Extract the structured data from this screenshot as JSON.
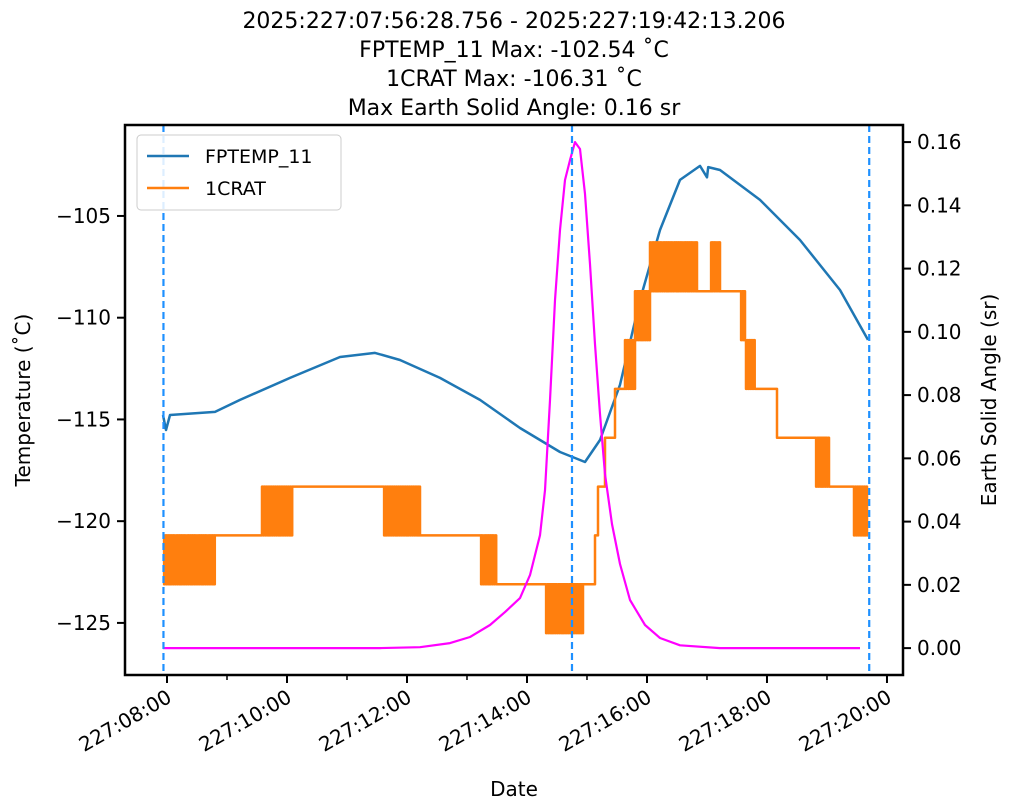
{
  "chart_data": {
    "type": "line",
    "title_lines": [
      "2025:227:07:56:28.756 - 2025:227:19:42:13.206",
      "FPTEMP_11 Max: -102.54 ˚C",
      "1CRAT Max: -106.31 ˚C",
      "Max Earth Solid Angle: 0.16 sr"
    ],
    "xlabel": "Date",
    "ylabel_left": "Temperature ($^\\circ$C)",
    "ylabel_left_display": "Temperature (˚C)",
    "ylabel_right": "Earth Solid Angle (sr)",
    "x_units": "hours of day 227",
    "xlim": [
      7.3,
      20.267
    ],
    "ylim_left": [
      -127.56,
      -100.53
    ],
    "ylim_right": [
      -0.0085,
      0.1654
    ],
    "x_ticks": [
      {
        "value": 8,
        "label": "227:08:00"
      },
      {
        "value": 10,
        "label": "227:10:00"
      },
      {
        "value": 12,
        "label": "227:12:00"
      },
      {
        "value": 14,
        "label": "227:14:00"
      },
      {
        "value": 16,
        "label": "227:16:00"
      },
      {
        "value": 18,
        "label": "227:18:00"
      },
      {
        "value": 20,
        "label": "227:20:00"
      }
    ],
    "x_minor_ticks": [
      9,
      11,
      13,
      15,
      17,
      19
    ],
    "y_ticks_left": [
      {
        "value": -105,
        "label": "−105"
      },
      {
        "value": -110,
        "label": "−110"
      },
      {
        "value": -115,
        "label": "−115"
      },
      {
        "value": -120,
        "label": "−120"
      },
      {
        "value": -125,
        "label": "−125"
      }
    ],
    "y_ticks_right": [
      {
        "value": 0.0,
        "label": "0.00"
      },
      {
        "value": 0.02,
        "label": "0.02"
      },
      {
        "value": 0.04,
        "label": "0.04"
      },
      {
        "value": 0.06,
        "label": "0.06"
      },
      {
        "value": 0.08,
        "label": "0.08"
      },
      {
        "value": 0.1,
        "label": "0.10"
      },
      {
        "value": 0.12,
        "label": "0.12"
      },
      {
        "value": 0.14,
        "label": "0.14"
      },
      {
        "value": 0.16,
        "label": "0.16"
      }
    ],
    "legend": {
      "placement": "upper-left",
      "entries": [
        {
          "name": "FPTEMP_11",
          "color": "#1f77b4"
        },
        {
          "name": "1CRAT",
          "color": "#ff7f0e"
        }
      ]
    },
    "vlines": {
      "color": "#1e90ff",
      "x": [
        7.941,
        14.75,
        19.704
      ]
    },
    "series": [
      {
        "name": "FPTEMP_11",
        "axis": "left",
        "color": "#1f77b4",
        "points": [
          [
            7.933,
            -114.78
          ],
          [
            7.983,
            -115.52
          ],
          [
            8.05,
            -114.78
          ],
          [
            8.8,
            -114.63
          ],
          [
            9.217,
            -114.04
          ],
          [
            10.05,
            -112.96
          ],
          [
            10.883,
            -111.93
          ],
          [
            11.467,
            -111.73
          ],
          [
            11.883,
            -112.08
          ],
          [
            12.55,
            -112.96
          ],
          [
            13.217,
            -114.04
          ],
          [
            13.883,
            -115.42
          ],
          [
            14.55,
            -116.6
          ],
          [
            14.967,
            -117.09
          ],
          [
            15.217,
            -116.01
          ],
          [
            15.55,
            -113.3
          ],
          [
            15.883,
            -109.13
          ],
          [
            16.217,
            -105.69
          ],
          [
            16.55,
            -103.23
          ],
          [
            16.883,
            -102.54
          ],
          [
            17.0,
            -103.1
          ],
          [
            17.02,
            -102.6
          ],
          [
            17.217,
            -102.74
          ],
          [
            17.883,
            -104.21
          ],
          [
            18.55,
            -106.18
          ],
          [
            19.217,
            -108.64
          ],
          [
            19.683,
            -111.09
          ]
        ]
      },
      {
        "name": "1CRAT",
        "axis": "left",
        "color": "#ff7f0e",
        "segments": [
          [
            7.933,
            8.8,
            -120.7,
            -123.1
          ],
          [
            8.8,
            9.583,
            -120.7,
            null
          ],
          [
            9.583,
            10.1,
            -118.3,
            -120.7
          ],
          [
            10.1,
            11.6,
            -118.3,
            null
          ],
          [
            11.6,
            12.217,
            -118.3,
            -120.7
          ],
          [
            12.217,
            13.217,
            -120.7,
            null
          ],
          [
            13.217,
            13.5,
            -120.7,
            -123.1
          ],
          [
            13.5,
            14.3,
            -123.1,
            null
          ],
          [
            14.3,
            14.933,
            -123.1,
            -125.5
          ],
          [
            14.933,
            15.133,
            -123.1,
            null
          ],
          [
            15.133,
            15.183,
            -120.7,
            null
          ],
          [
            15.183,
            15.3,
            -118.3,
            null
          ],
          [
            15.3,
            15.467,
            -115.9,
            null
          ],
          [
            15.467,
            15.633,
            -113.5,
            null
          ],
          [
            15.633,
            15.8,
            -111.1,
            -113.5
          ],
          [
            15.8,
            16.05,
            -108.7,
            -111.1
          ],
          [
            16.05,
            16.467,
            -106.3,
            -108.7
          ],
          [
            16.467,
            16.833,
            -106.3,
            -108.7
          ],
          [
            16.833,
            17.05,
            -108.7,
            null
          ],
          [
            17.05,
            17.217,
            -108.7,
            -106.3
          ],
          [
            17.217,
            17.55,
            -108.7,
            null
          ],
          [
            17.55,
            17.633,
            -108.7,
            -111.1
          ],
          [
            17.633,
            17.8,
            -111.1,
            -113.5
          ],
          [
            17.8,
            18.167,
            -113.5,
            null
          ],
          [
            18.167,
            18.8,
            -115.9,
            null
          ],
          [
            18.8,
            19.05,
            -115.9,
            -118.3
          ],
          [
            19.05,
            19.433,
            -118.3,
            null
          ],
          [
            19.433,
            19.683,
            -118.3,
            -120.7
          ]
        ]
      },
      {
        "name": "Earth Solid Angle",
        "axis": "right",
        "color": "#ff00ff",
        "points": [
          [
            7.933,
            0
          ],
          [
            11.55,
            0
          ],
          [
            12.217,
            0.0003
          ],
          [
            12.717,
            0.0016
          ],
          [
            13.05,
            0.0035
          ],
          [
            13.383,
            0.0073
          ],
          [
            13.633,
            0.0114
          ],
          [
            13.883,
            0.0158
          ],
          [
            14.05,
            0.0231
          ],
          [
            14.217,
            0.0357
          ],
          [
            14.3,
            0.0499
          ],
          [
            14.383,
            0.0784
          ],
          [
            14.467,
            0.11
          ],
          [
            14.55,
            0.1322
          ],
          [
            14.633,
            0.148
          ],
          [
            14.717,
            0.1543
          ],
          [
            14.8,
            0.16
          ],
          [
            14.883,
            0.1578
          ],
          [
            14.967,
            0.1436
          ],
          [
            15.05,
            0.1214
          ],
          [
            15.133,
            0.0961
          ],
          [
            15.217,
            0.074
          ],
          [
            15.3,
            0.055
          ],
          [
            15.417,
            0.0392
          ],
          [
            15.55,
            0.0266
          ],
          [
            15.717,
            0.0152
          ],
          [
            15.967,
            0.0073
          ],
          [
            16.217,
            0.0032
          ],
          [
            16.55,
            0.0009
          ],
          [
            17.217,
            0
          ],
          [
            19.55,
            0
          ]
        ]
      }
    ]
  }
}
